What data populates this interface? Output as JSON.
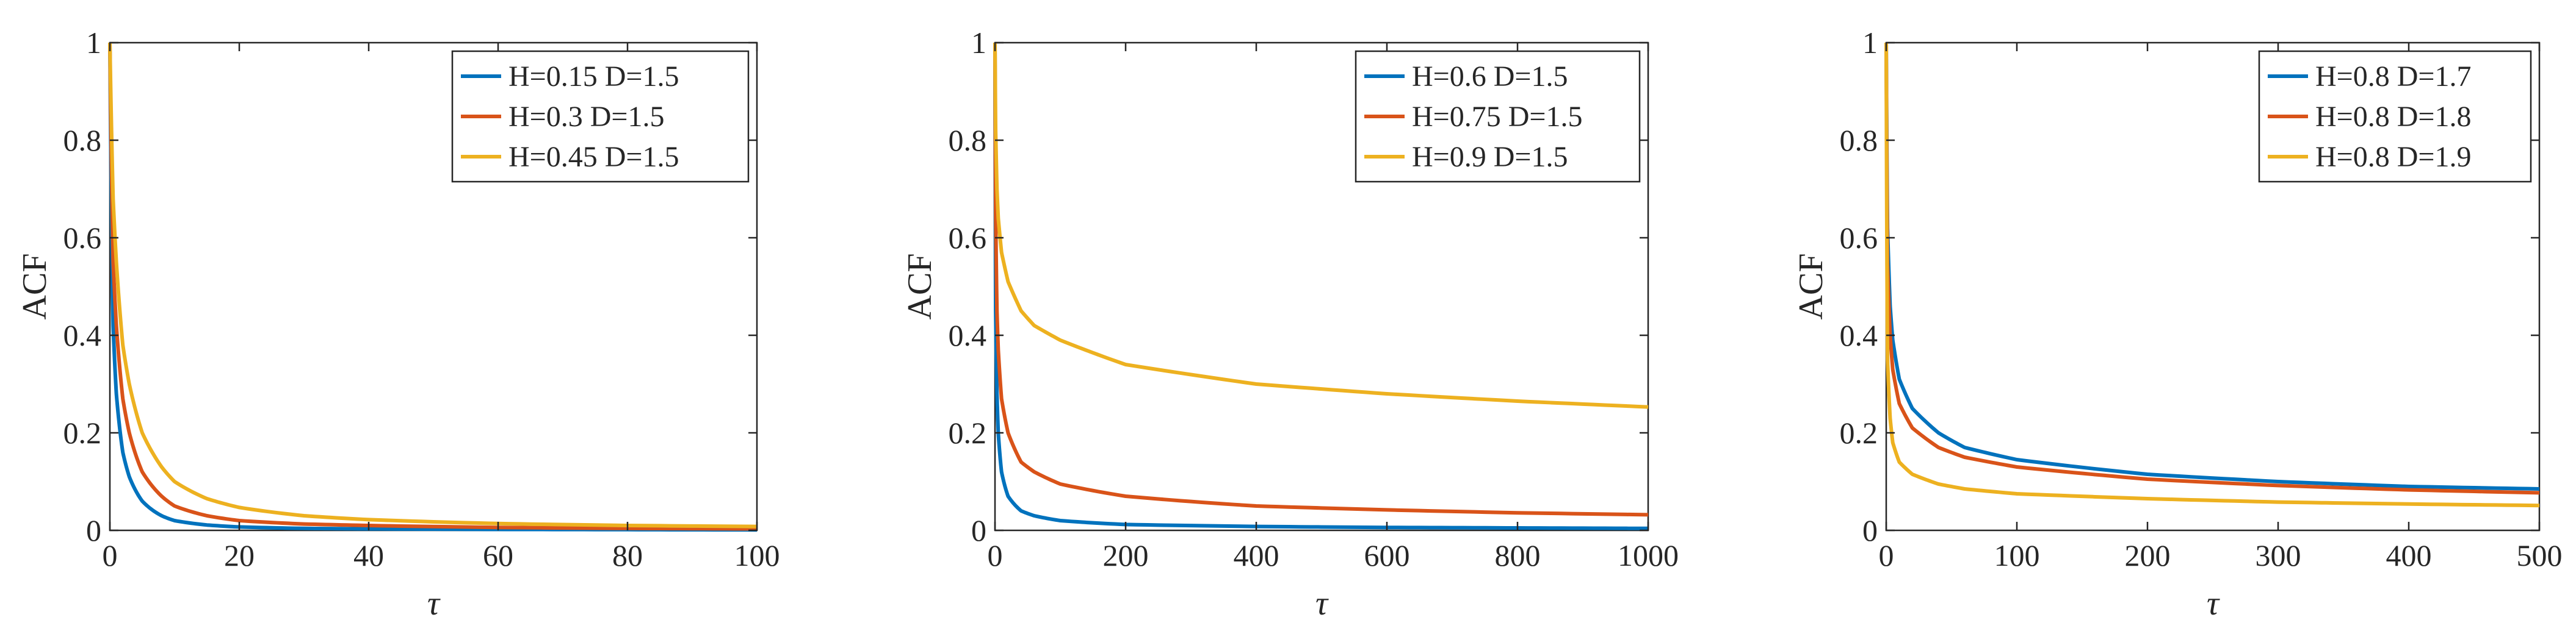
{
  "colors": {
    "series1": "#0072BD",
    "series2": "#D95319",
    "series3": "#EDB120",
    "axis": "#262626",
    "background": "#ffffff"
  },
  "chart_data": [
    {
      "type": "line",
      "title": "",
      "xlabel": "τ",
      "ylabel": "ACF",
      "xlim": [
        0,
        100
      ],
      "ylim": [
        0,
        1
      ],
      "xticks": [
        0,
        20,
        40,
        60,
        80,
        100
      ],
      "xtick_labels": [
        "0",
        "20",
        "40",
        "60",
        "80",
        "100"
      ],
      "yticks": [
        0,
        0.2,
        0.4,
        0.6,
        0.8,
        1
      ],
      "ytick_labels": [
        "0",
        "0.2",
        "0.4",
        "0.6",
        "0.8",
        "1"
      ],
      "legend_position": "top-right",
      "grid": false,
      "series": [
        {
          "name": "H=0.15 D=1.5",
          "color": "#0072BD",
          "x": [
            0,
            0.5,
            1,
            2,
            3,
            5,
            8,
            10,
            15,
            20,
            30,
            40,
            60,
            80,
            100
          ],
          "y": [
            1,
            0.42,
            0.28,
            0.16,
            0.11,
            0.06,
            0.03,
            0.02,
            0.011,
            0.007,
            0.004,
            0.003,
            0.002,
            0.0015,
            0.001
          ]
        },
        {
          "name": "H=0.3 D=1.5",
          "color": "#D95319",
          "x": [
            0,
            0.5,
            1,
            2,
            3,
            5,
            8,
            10,
            15,
            20,
            30,
            40,
            60,
            80,
            100
          ],
          "y": [
            1,
            0.55,
            0.42,
            0.27,
            0.2,
            0.12,
            0.07,
            0.05,
            0.03,
            0.02,
            0.013,
            0.01,
            0.006,
            0.004,
            0.003
          ]
        },
        {
          "name": "H=0.45 D=1.5",
          "color": "#EDB120",
          "x": [
            0,
            0.5,
            1,
            2,
            3,
            5,
            8,
            10,
            15,
            20,
            30,
            40,
            60,
            80,
            100
          ],
          "y": [
            1,
            0.68,
            0.55,
            0.38,
            0.3,
            0.2,
            0.13,
            0.1,
            0.065,
            0.047,
            0.03,
            0.022,
            0.014,
            0.01,
            0.008
          ]
        }
      ]
    },
    {
      "type": "line",
      "title": "",
      "xlabel": "τ",
      "ylabel": "ACF",
      "xlim": [
        0,
        1000
      ],
      "ylim": [
        0,
        1
      ],
      "xticks": [
        0,
        200,
        400,
        600,
        800,
        1000
      ],
      "xtick_labels": [
        "0",
        "200",
        "400",
        "600",
        "800",
        "1000"
      ],
      "yticks": [
        0,
        0.2,
        0.4,
        0.6,
        0.8,
        1
      ],
      "ytick_labels": [
        "0",
        "0.2",
        "0.4",
        "0.6",
        "0.8",
        "1"
      ],
      "legend_position": "top-right",
      "grid": false,
      "series": [
        {
          "name": "H=0.6 D=1.5",
          "color": "#0072BD",
          "x": [
            0,
            1,
            3,
            5,
            10,
            20,
            40,
            60,
            100,
            200,
            400,
            600,
            800,
            1000
          ],
          "y": [
            1,
            0.45,
            0.28,
            0.2,
            0.12,
            0.07,
            0.04,
            0.03,
            0.02,
            0.012,
            0.008,
            0.006,
            0.005,
            0.004
          ]
        },
        {
          "name": "H=0.75 D=1.5",
          "color": "#D95319",
          "x": [
            0,
            1,
            3,
            5,
            10,
            20,
            40,
            60,
            100,
            200,
            400,
            600,
            800,
            1000
          ],
          "y": [
            1,
            0.65,
            0.45,
            0.37,
            0.27,
            0.2,
            0.14,
            0.12,
            0.095,
            0.07,
            0.05,
            0.042,
            0.036,
            0.032
          ]
        },
        {
          "name": "H=0.9 D=1.5",
          "color": "#EDB120",
          "x": [
            0,
            1,
            3,
            5,
            10,
            20,
            40,
            60,
            100,
            200,
            400,
            600,
            800,
            1000
          ],
          "y": [
            1,
            0.82,
            0.7,
            0.64,
            0.57,
            0.51,
            0.45,
            0.42,
            0.39,
            0.34,
            0.3,
            0.28,
            0.265,
            0.253
          ]
        }
      ]
    },
    {
      "type": "line",
      "title": "",
      "xlabel": "τ",
      "ylabel": "ACF",
      "xlim": [
        0,
        500
      ],
      "ylim": [
        0,
        1
      ],
      "xticks": [
        0,
        100,
        200,
        300,
        400,
        500
      ],
      "xtick_labels": [
        "0",
        "100",
        "200",
        "300",
        "400",
        "500"
      ],
      "yticks": [
        0,
        0.2,
        0.4,
        0.6,
        0.8,
        1
      ],
      "ytick_labels": [
        "0",
        "0.2",
        "0.4",
        "0.6",
        "0.8",
        "1"
      ],
      "legend_position": "top-right",
      "grid": false,
      "series": [
        {
          "name": "H=0.8 D=1.7",
          "color": "#0072BD",
          "x": [
            0,
            1,
            3,
            5,
            10,
            20,
            40,
            60,
            100,
            200,
            300,
            400,
            500
          ],
          "y": [
            1,
            0.62,
            0.46,
            0.39,
            0.31,
            0.25,
            0.2,
            0.17,
            0.145,
            0.115,
            0.1,
            0.09,
            0.085
          ]
        },
        {
          "name": "H=0.8 D=1.8",
          "color": "#D95319",
          "x": [
            0,
            1,
            3,
            5,
            10,
            20,
            40,
            60,
            100,
            200,
            300,
            400,
            500
          ],
          "y": [
            1,
            0.55,
            0.4,
            0.33,
            0.26,
            0.21,
            0.17,
            0.15,
            0.13,
            0.105,
            0.092,
            0.083,
            0.077
          ]
        },
        {
          "name": "H=0.8 D=1.9",
          "color": "#EDB120",
          "x": [
            0,
            1,
            3,
            5,
            10,
            20,
            40,
            60,
            100,
            200,
            300,
            400,
            500
          ],
          "y": [
            1,
            0.35,
            0.23,
            0.18,
            0.14,
            0.115,
            0.095,
            0.085,
            0.075,
            0.065,
            0.058,
            0.054,
            0.051
          ]
        }
      ]
    }
  ]
}
